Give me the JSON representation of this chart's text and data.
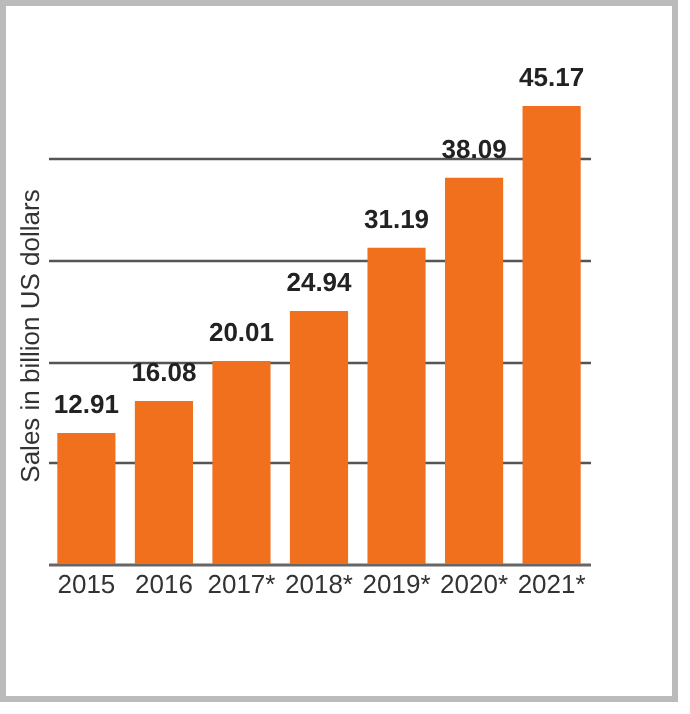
{
  "chart_data": {
    "type": "bar",
    "ylabel": "Sales in billion US dollars",
    "categories": [
      "2015",
      "2016",
      "2017*",
      "2018*",
      "2019*",
      "2020*",
      "2021*"
    ],
    "values": [
      12.91,
      16.08,
      20.01,
      24.94,
      31.19,
      38.09,
      45.17
    ],
    "color": "#f0701e",
    "data_labels": true,
    "grid": "y",
    "yticks": [
      {
        "value": 10,
        "label": null
      },
      {
        "value": 20,
        "label": null
      },
      {
        "value": 30,
        "label": null
      },
      {
        "value": 40,
        "label": null
      }
    ],
    "tick_labels": "x"
  }
}
